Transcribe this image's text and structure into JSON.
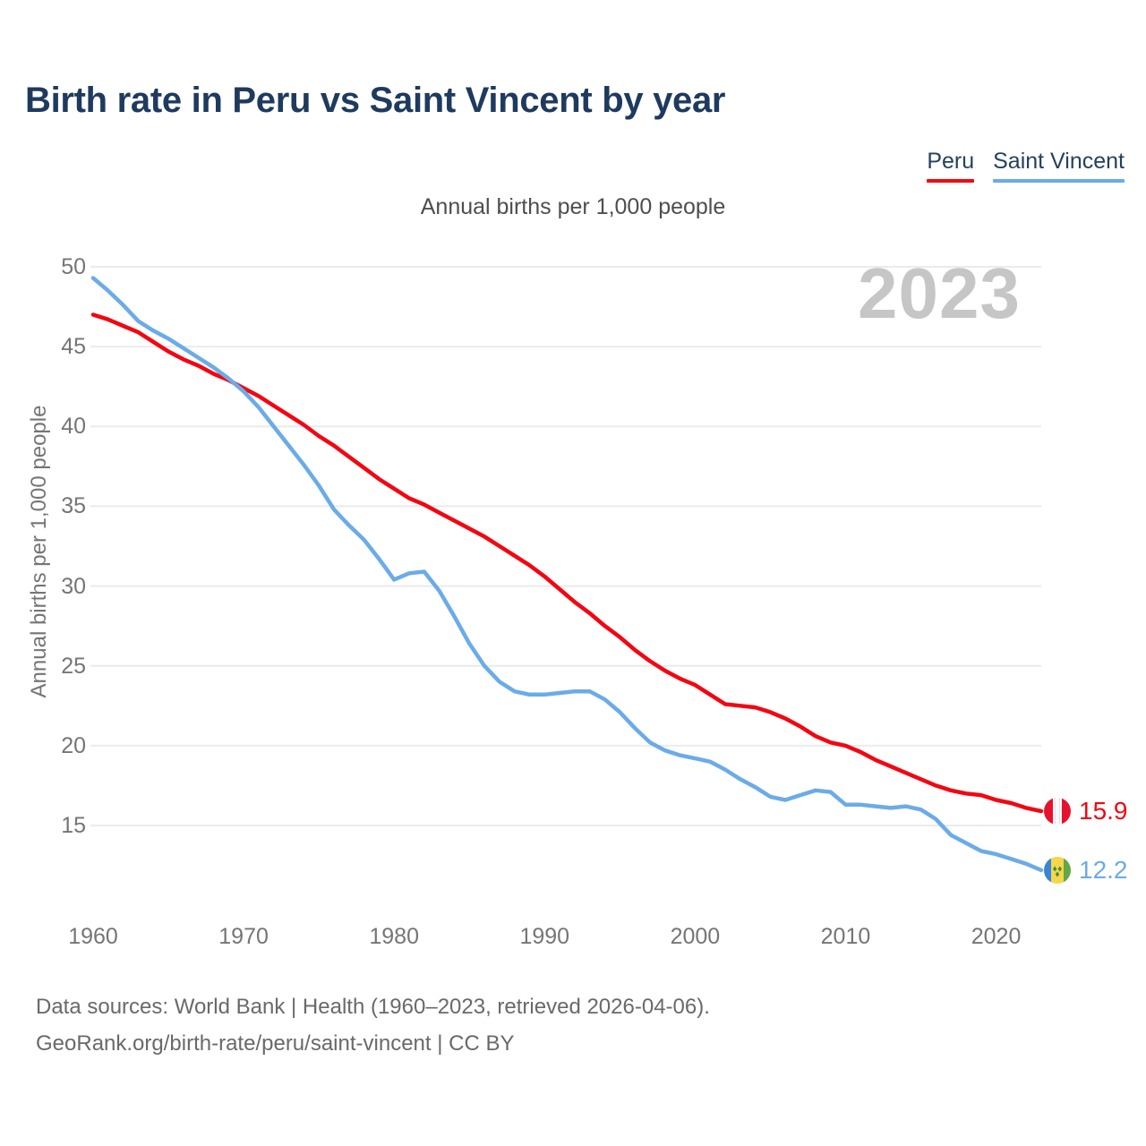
{
  "title": "Birth rate in Peru vs Saint Vincent by year",
  "subtitle": "Annual births per 1,000 people",
  "watermark": "2023",
  "legend": [
    {
      "label": "Peru",
      "color": "#f30612"
    },
    {
      "label": "Saint Vincent",
      "color": "#6babe8"
    }
  ],
  "chart_data": {
    "type": "line",
    "title": "Birth rate in Peru vs Saint Vincent by year",
    "xlabel": "",
    "ylabel": "Annual births per 1,000 people",
    "xlim": [
      1960,
      2023
    ],
    "ylim": [
      11,
      50
    ],
    "grid": true,
    "legend_position": "top-right",
    "xticks": [
      1960,
      1970,
      1980,
      1990,
      2000,
      2010,
      2020
    ],
    "yticks": [
      15,
      20,
      25,
      30,
      35,
      40,
      45,
      50
    ],
    "x": [
      1960,
      1961,
      1962,
      1963,
      1964,
      1965,
      1966,
      1967,
      1968,
      1969,
      1970,
      1971,
      1972,
      1973,
      1974,
      1975,
      1976,
      1977,
      1978,
      1979,
      1980,
      1981,
      1982,
      1983,
      1984,
      1985,
      1986,
      1987,
      1988,
      1989,
      1990,
      1991,
      1992,
      1993,
      1994,
      1995,
      1996,
      1997,
      1998,
      1999,
      2000,
      2001,
      2002,
      2003,
      2004,
      2005,
      2006,
      2007,
      2008,
      2009,
      2010,
      2011,
      2012,
      2013,
      2014,
      2015,
      2016,
      2017,
      2018,
      2019,
      2020,
      2021,
      2022,
      2023
    ],
    "series": [
      {
        "name": "Peru",
        "color": "#f30612",
        "values": [
          47.0,
          46.7,
          46.3,
          45.9,
          45.3,
          44.7,
          44.2,
          43.8,
          43.3,
          42.9,
          42.4,
          41.9,
          41.3,
          40.7,
          40.1,
          39.4,
          38.8,
          38.1,
          37.4,
          36.7,
          36.1,
          35.5,
          35.1,
          34.6,
          34.1,
          33.6,
          33.1,
          32.5,
          31.9,
          31.3,
          30.6,
          29.8,
          29.0,
          28.3,
          27.5,
          26.8,
          26.0,
          25.3,
          24.7,
          24.2,
          23.8,
          23.2,
          22.6,
          22.5,
          22.4,
          22.1,
          21.7,
          21.2,
          20.6,
          20.2,
          20.0,
          19.6,
          19.1,
          18.7,
          18.3,
          17.9,
          17.5,
          17.2,
          17.0,
          16.9,
          16.6,
          16.4,
          16.1,
          15.9
        ]
      },
      {
        "name": "Saint Vincent",
        "color": "#6babe8",
        "values": [
          49.3,
          48.5,
          47.6,
          46.6,
          46.0,
          45.5,
          44.9,
          44.3,
          43.7,
          43.0,
          42.2,
          41.2,
          40.0,
          38.8,
          37.6,
          36.3,
          34.8,
          33.8,
          32.9,
          31.7,
          30.4,
          30.8,
          30.9,
          29.7,
          28.1,
          26.4,
          25.0,
          24.0,
          23.4,
          23.2,
          23.2,
          23.3,
          23.4,
          23.4,
          22.9,
          22.1,
          21.1,
          20.2,
          19.7,
          19.4,
          19.2,
          19.0,
          18.5,
          17.9,
          17.4,
          16.8,
          16.6,
          16.9,
          17.2,
          17.1,
          16.3,
          16.3,
          16.2,
          16.1,
          16.2,
          16.0,
          15.4,
          14.4,
          13.9,
          13.4,
          13.2,
          12.9,
          12.6,
          12.2
        ]
      }
    ]
  },
  "end_labels": [
    {
      "series": "Peru",
      "value": "15.9",
      "flag": "peru-flag"
    },
    {
      "series": "Saint Vincent",
      "value": "12.2",
      "flag": "saint-vincent-flag"
    }
  ],
  "footer": {
    "line1": "Data sources: World Bank | Health (1960–2023, retrieved 2026-04-06).",
    "line2": "GeoRank.org/birth-rate/peru/saint-vincent | CC BY"
  }
}
